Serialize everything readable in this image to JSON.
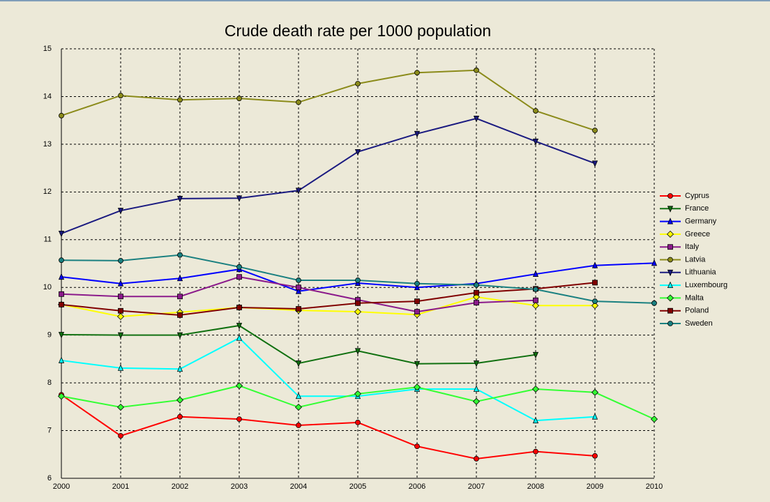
{
  "chart_data": {
    "type": "line",
    "title": "Crude death rate per 1000 population",
    "x": [
      2000,
      2001,
      2002,
      2003,
      2004,
      2005,
      2006,
      2007,
      2008,
      2009,
      2010
    ],
    "xlim": [
      2000,
      2010
    ],
    "xticks": [
      2000,
      2001,
      2002,
      2003,
      2004,
      2005,
      2006,
      2007,
      2008,
      2009,
      2010
    ],
    "ylim": [
      6,
      15
    ],
    "yticks": [
      6,
      7,
      8,
      9,
      10,
      11,
      12,
      13,
      14,
      15
    ],
    "grid": true,
    "legend": "right",
    "series": [
      {
        "name": "Cyprus",
        "color": "#ff0000",
        "marker": "circle",
        "values": [
          7.75,
          6.89,
          7.29,
          7.24,
          7.11,
          7.17,
          6.67,
          6.41,
          6.56,
          6.47,
          null
        ]
      },
      {
        "name": "France",
        "color": "#107010",
        "marker": "down",
        "values": [
          9.01,
          9.0,
          9.0,
          9.2,
          8.41,
          8.67,
          8.4,
          8.41,
          8.59,
          null,
          null
        ]
      },
      {
        "name": "Germany",
        "color": "#0000ff",
        "marker": "up",
        "values": [
          10.22,
          10.08,
          10.19,
          10.38,
          9.92,
          10.09,
          10.0,
          10.08,
          10.28,
          10.46,
          10.51
        ]
      },
      {
        "name": "Greece",
        "color": "#ffff00",
        "marker": "diamond",
        "values": [
          9.64,
          9.39,
          9.48,
          9.58,
          9.52,
          9.49,
          9.43,
          9.8,
          9.62,
          9.62,
          null
        ]
      },
      {
        "name": "Italy",
        "color": "#8b1a8b",
        "marker": "square",
        "values": [
          9.86,
          9.81,
          9.81,
          10.22,
          10.0,
          9.74,
          9.49,
          9.68,
          9.73,
          null,
          null
        ]
      },
      {
        "name": "Latvia",
        "color": "#8b8b1a",
        "marker": "circle",
        "values": [
          13.6,
          14.02,
          13.93,
          13.96,
          13.88,
          14.27,
          14.5,
          14.55,
          13.7,
          13.29,
          null
        ]
      },
      {
        "name": "Lithuania",
        "color": "#1a1a80",
        "marker": "down",
        "values": [
          11.13,
          11.61,
          11.86,
          11.87,
          12.03,
          12.84,
          13.22,
          13.54,
          13.06,
          12.6,
          null
        ]
      },
      {
        "name": "Luxembourg",
        "color": "#00ffff",
        "marker": "up",
        "values": [
          8.47,
          8.31,
          8.29,
          8.94,
          7.72,
          7.72,
          7.87,
          7.87,
          7.21,
          7.29,
          null
        ]
      },
      {
        "name": "Malta",
        "color": "#33ff33",
        "marker": "diamond",
        "values": [
          7.72,
          7.49,
          7.64,
          7.94,
          7.49,
          7.77,
          7.91,
          7.61,
          7.87,
          7.8,
          7.24
        ]
      },
      {
        "name": "Poland",
        "color": "#800000",
        "marker": "square",
        "values": [
          9.64,
          9.51,
          9.42,
          9.58,
          9.55,
          9.67,
          9.71,
          9.89,
          9.97,
          10.1,
          null
        ]
      },
      {
        "name": "Sweden",
        "color": "#1a8080",
        "marker": "circle",
        "values": [
          10.57,
          10.56,
          10.68,
          10.43,
          10.15,
          10.15,
          10.08,
          10.05,
          9.96,
          9.71,
          9.67
        ]
      }
    ]
  }
}
